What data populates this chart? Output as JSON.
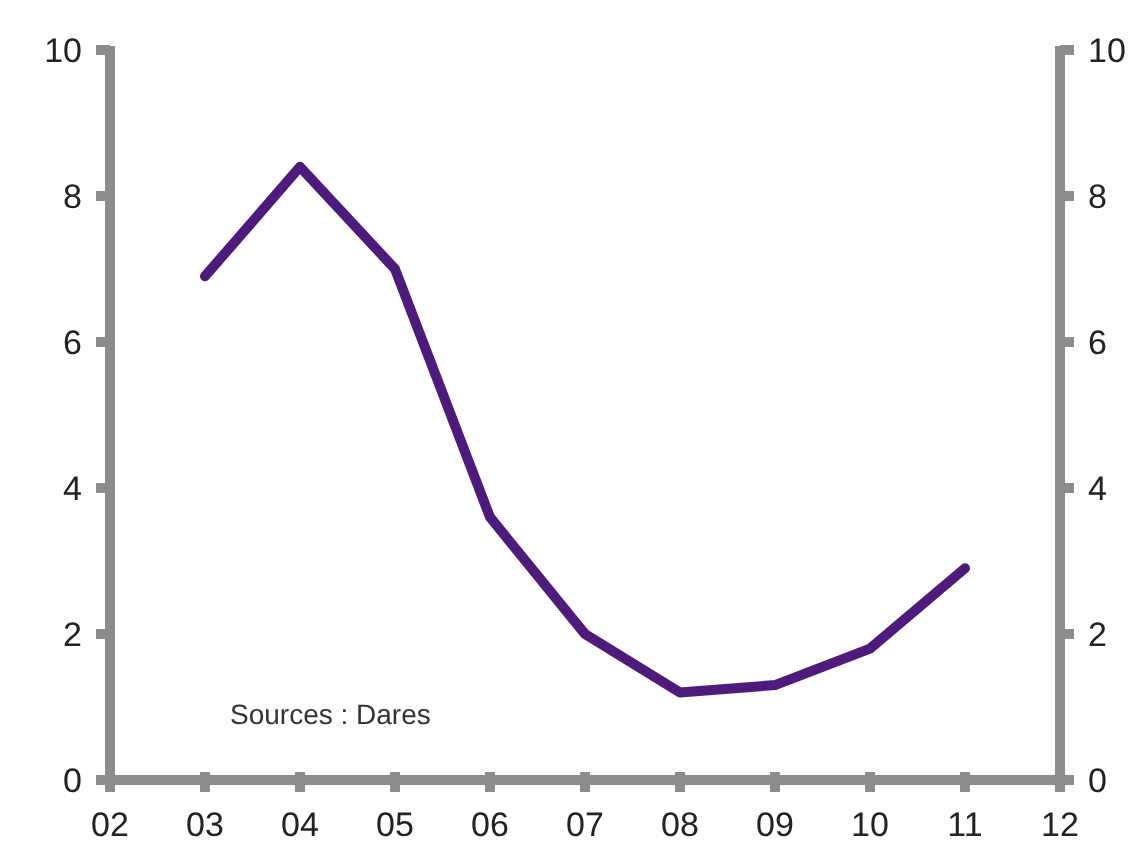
{
  "chart_data": {
    "type": "line",
    "categories": [
      "02",
      "03",
      "04",
      "05",
      "06",
      "07",
      "08",
      "09",
      "10",
      "11",
      "12"
    ],
    "series": [
      {
        "color": "#4e1b7d",
        "values": [
          null,
          6.9,
          8.4,
          7.0,
          3.6,
          2.0,
          1.2,
          1.3,
          1.8,
          2.9,
          null
        ]
      }
    ],
    "ylim": [
      0,
      10
    ],
    "yticks": [
      0,
      2,
      4,
      6,
      8,
      10
    ],
    "y2lim": [
      0,
      10
    ],
    "y2ticks": [
      0,
      2,
      4,
      6,
      8,
      10
    ],
    "annotations": [
      "Sources :  Dares"
    ],
    "grid": false,
    "marker": "none",
    "line_style": "solid"
  }
}
